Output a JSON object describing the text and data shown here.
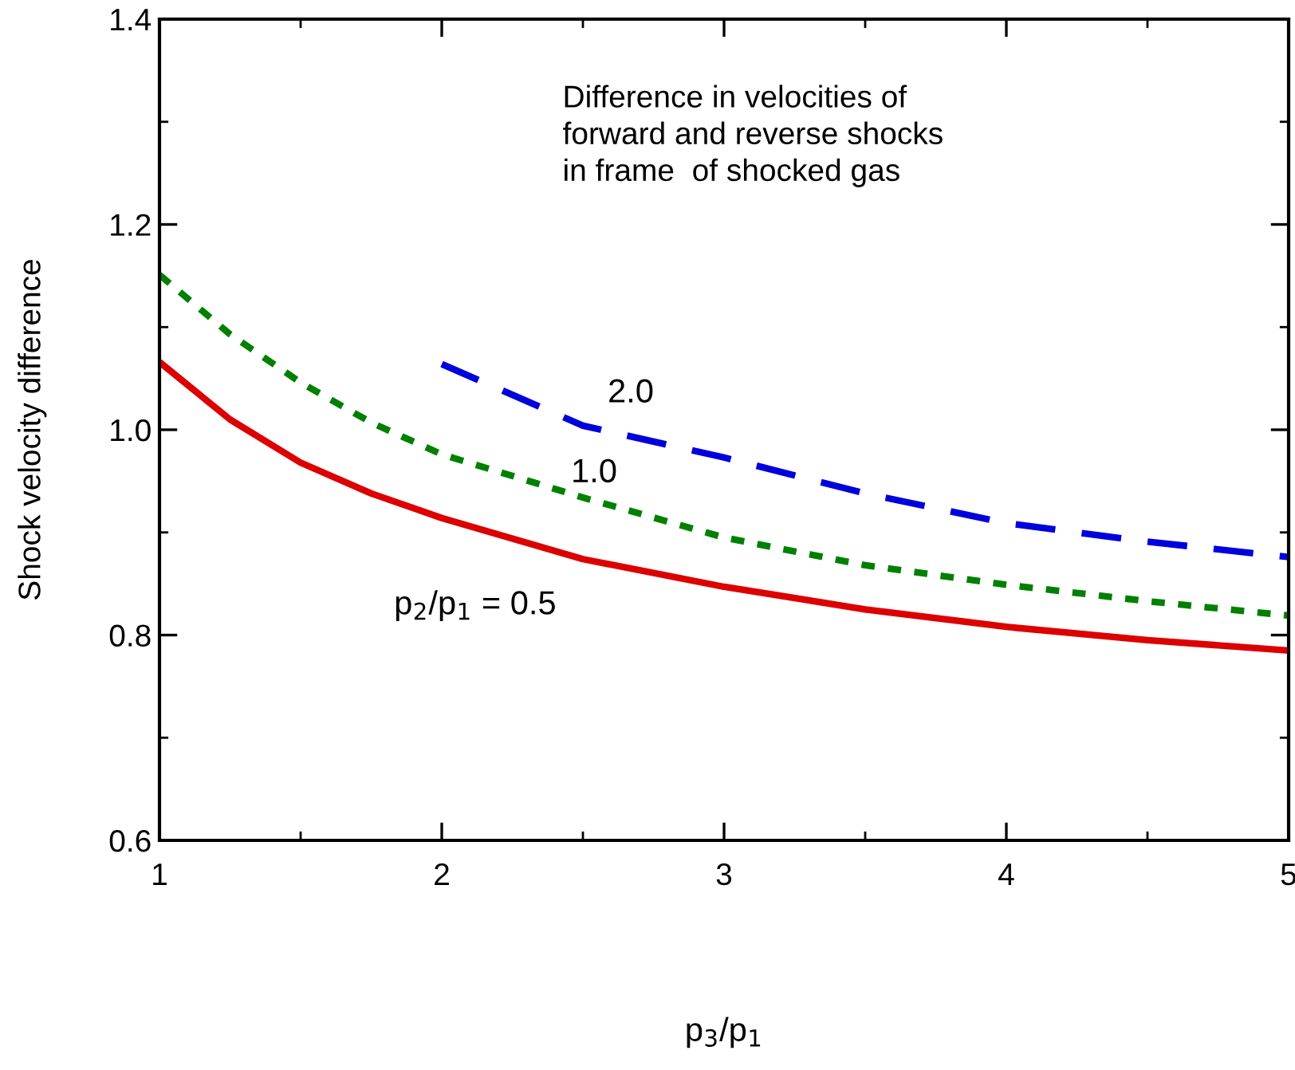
{
  "chart_data": {
    "type": "line",
    "xlabel": "p$_{3}$/p$_{1}$",
    "ylabel": "Shock velocity difference",
    "xlim": [
      1,
      5
    ],
    "ylim": [
      0.6,
      1.4
    ],
    "xticks": [
      1,
      2,
      3,
      4,
      5
    ],
    "yticks": [
      {
        "value": 0.6,
        "label": "0.6"
      },
      {
        "value": 0.8,
        "label": "0.8"
      },
      {
        "value": 1.0,
        "label": "1.0"
      },
      {
        "value": 1.2,
        "label": "1.2"
      },
      {
        "value": 1.4,
        "label": "1.4"
      }
    ],
    "grid": false,
    "legend": false,
    "series": [
      {
        "name": "p$_{2}$/p$_{1}$ = 0.5",
        "color": "#dd0000",
        "line_style": "solid",
        "x": [
          1,
          1.25,
          1.5,
          1.75,
          2,
          2.5,
          3,
          3.5,
          4,
          4.5,
          5
        ],
        "values": [
          1.066,
          1.01,
          0.968,
          0.938,
          0.914,
          0.874,
          0.847,
          0.825,
          0.808,
          0.795,
          0.785
        ]
      },
      {
        "name": "1.0",
        "color": "#008000",
        "line_style": "dotted",
        "x": [
          1,
          1.25,
          1.5,
          1.75,
          2,
          2.5,
          3,
          3.5,
          4,
          4.5,
          5
        ],
        "values": [
          1.151,
          1.093,
          1.046,
          1.007,
          0.976,
          0.934,
          0.895,
          0.868,
          0.849,
          0.833,
          0.819
        ]
      },
      {
        "name": "2.0",
        "color": "#0000dd",
        "line_style": "dashed",
        "x": [
          2,
          2.5,
          3,
          3.5,
          4,
          4.5,
          5
        ],
        "values": [
          1.064,
          1.004,
          0.973,
          0.938,
          0.909,
          0.891,
          0.876
        ]
      }
    ],
    "annotations": [
      "Difference in velocities of\nforward and reverse shocks\nin frame  of shocked gas"
    ]
  }
}
